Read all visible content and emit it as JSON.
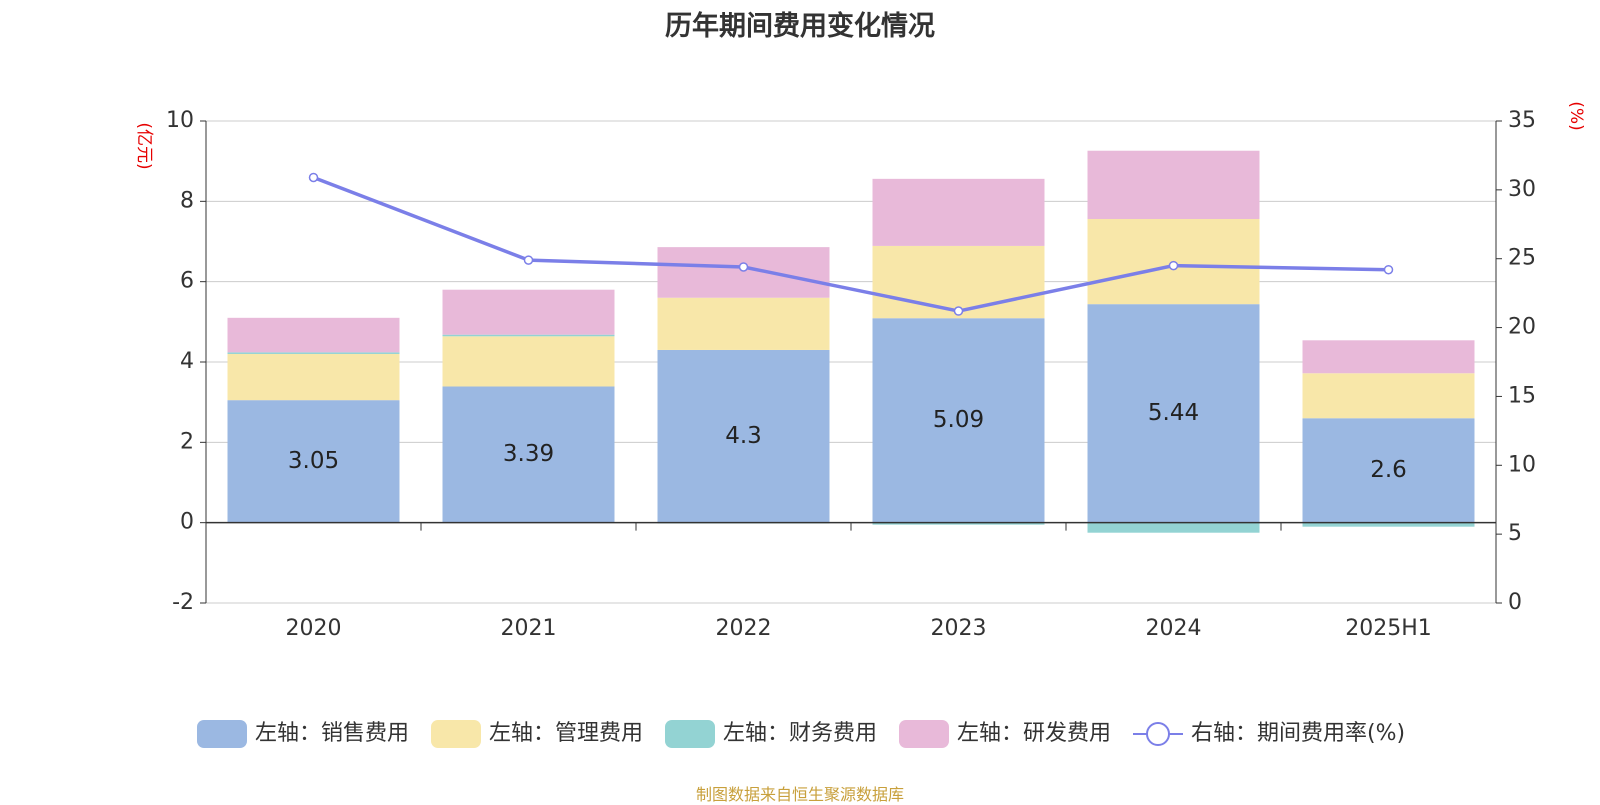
{
  "title": "历年期间费用变化情况",
  "source": "制图数据来自恒生聚源数据库",
  "chart_data": {
    "type": "bar",
    "stacked": true,
    "categories": [
      "2020",
      "2021",
      "2022",
      "2023",
      "2024",
      "2025H1"
    ],
    "left_axis": {
      "label": "(亿元)",
      "min": -2,
      "max": 10,
      "ticks": [
        -2,
        0,
        2,
        4,
        6,
        8,
        10
      ]
    },
    "right_axis": {
      "label": "(%)",
      "min": 0,
      "max": 35,
      "ticks": [
        0,
        5,
        10,
        15,
        20,
        25,
        30,
        35
      ]
    },
    "grid": true,
    "legend_position": "bottom",
    "series": [
      {
        "name": "左轴：销售费用",
        "type": "bar",
        "axis": "left",
        "color": "#9bb8e2",
        "values": [
          3.05,
          3.39,
          4.3,
          5.09,
          5.44,
          2.6
        ],
        "data_labels": true
      },
      {
        "name": "左轴：管理费用",
        "type": "bar",
        "axis": "left",
        "color": "#f8e7a9",
        "values": [
          1.15,
          1.25,
          1.3,
          1.8,
          2.12,
          1.12
        ],
        "data_labels": false
      },
      {
        "name": "左轴：财务费用",
        "type": "bar",
        "axis": "left",
        "color": "#93d3d3",
        "values": [
          0.04,
          0.04,
          -0.02,
          -0.05,
          -0.25,
          -0.1
        ],
        "data_labels": false
      },
      {
        "name": "左轴：研发费用",
        "type": "bar",
        "axis": "left",
        "color": "#e8b9d9",
        "values": [
          0.86,
          1.12,
          1.26,
          1.67,
          1.7,
          0.82
        ],
        "data_labels": false
      },
      {
        "name": "右轴：期间费用率(%)",
        "type": "line",
        "axis": "right",
        "color": "#7b7fe8",
        "values": [
          30.9,
          24.9,
          24.4,
          21.2,
          24.5,
          24.2
        ]
      }
    ]
  }
}
